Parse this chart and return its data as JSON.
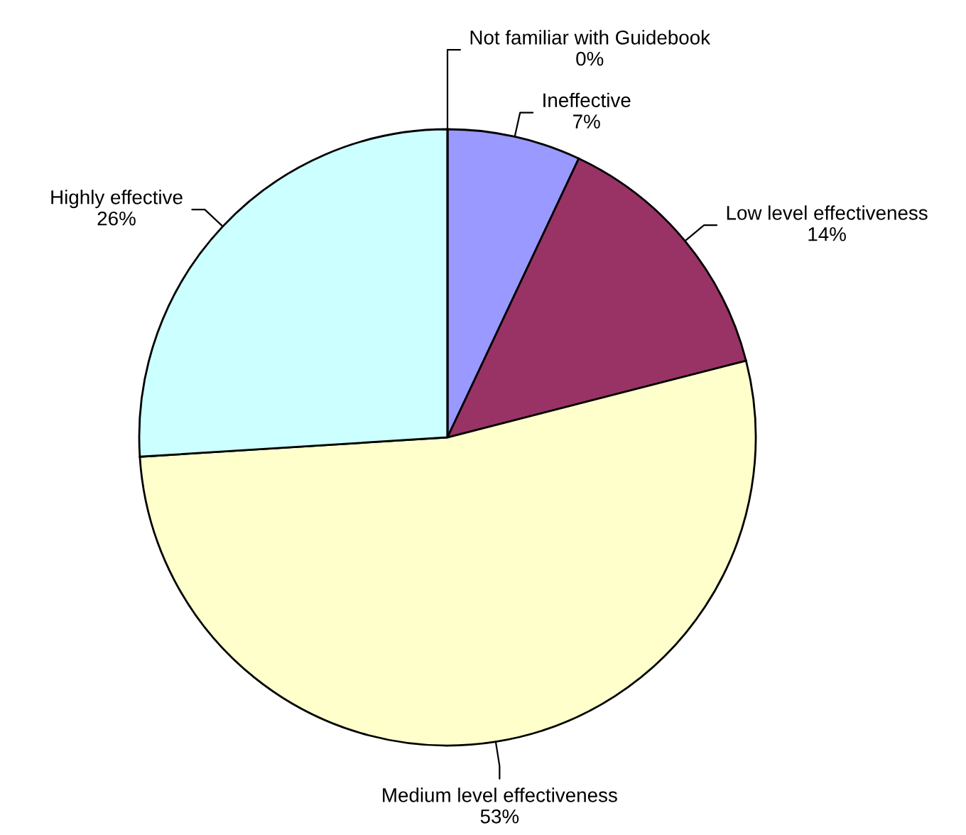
{
  "chart_data": {
    "type": "pie",
    "categories": [
      "Ineffective",
      "Low level effectiveness",
      "Medium level effectiveness",
      "Highly effective",
      "Not familiar with Guidebook"
    ],
    "values": [
      7,
      14,
      53,
      26,
      0
    ],
    "value_labels": [
      "7%",
      "14%",
      "53%",
      "26%",
      "0%"
    ],
    "colors": [
      "#9999ff",
      "#993366",
      "#ffffcc",
      "#ccffff",
      "#660066"
    ]
  }
}
